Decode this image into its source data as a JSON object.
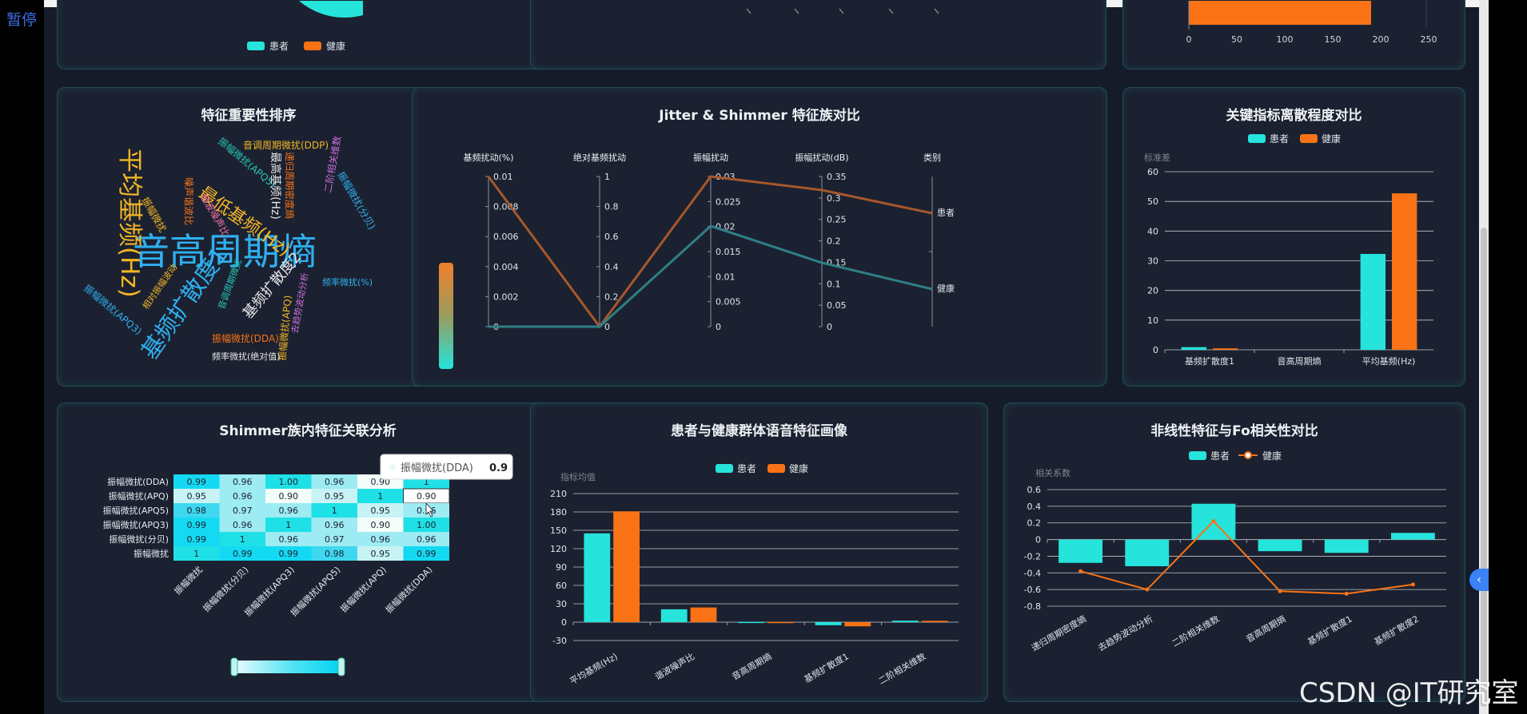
{
  "pause_label": "暂停",
  "watermark": "CSDN @IT研究室",
  "colors": {
    "patient": "#26e3dc",
    "healthy": "#f97316",
    "background": "#161b2a",
    "panel": "#1b2130"
  },
  "top_row": {
    "legend_patient": "患者",
    "legend_healthy": "健康",
    "right_axis_ticks": [
      "0",
      "50",
      "100",
      "150",
      "200",
      "250"
    ]
  },
  "wordcloud": {
    "title": "特征重要性排序",
    "words": [
      {
        "text": "音高周期熵",
        "color": "#2fb0f0"
      },
      {
        "text": "平均基频(Hz)",
        "color": "#f3b625"
      },
      {
        "text": "基频扩散度1",
        "color": "#2fb0f0"
      },
      {
        "text": "最低基频(Hz)",
        "color": "#f3b625"
      },
      {
        "text": "基频扩散度2",
        "color": "#e8e8e8"
      },
      {
        "text": "音调周期微扰(DDP)",
        "color": "#f3b625"
      },
      {
        "text": "振幅微扰(APQ5)",
        "color": "#27c7b8"
      },
      {
        "text": "最高基频(Hz)",
        "color": "#e8e8e8"
      },
      {
        "text": "递归周期密度熵",
        "color": "#f97316"
      },
      {
        "text": "振幅微扰(分贝)",
        "color": "#2fb0f0"
      },
      {
        "text": "二阶相关维数",
        "color": "#c770d6"
      },
      {
        "text": "频率微扰(%)",
        "color": "#2fb0f0"
      },
      {
        "text": "谐波噪声比",
        "color": "#ef6fa6"
      },
      {
        "text": "噪声谐波比",
        "color": "#f97316"
      },
      {
        "text": "振幅微扰",
        "color": "#f3b625"
      },
      {
        "text": "振幅微扰(APQ3)",
        "color": "#2fb0f0"
      },
      {
        "text": "相对振幅波动",
        "color": "#f3b625"
      },
      {
        "text": "音调周期微扰",
        "color": "#27c7b8"
      },
      {
        "text": "去趋势波动分析",
        "color": "#c770d6"
      },
      {
        "text": "振幅微扰(APQ)",
        "color": "#f3b625"
      },
      {
        "text": "振幅微扰(DDA)",
        "color": "#f97316"
      },
      {
        "text": "频率微扰(绝对值)",
        "color": "#e8e8e8"
      }
    ]
  },
  "jitter": {
    "title": "Jitter & Shimmer 特征族对比",
    "axes": [
      {
        "name": "基频扰动(%)",
        "ticks": [
          "0.01",
          "0.008",
          "0.006",
          "0.004",
          "0.002",
          "0"
        ]
      },
      {
        "name": "绝对基频扰动",
        "ticks": [
          "1",
          "0.8",
          "0.6",
          "0.4",
          "0.2",
          "0"
        ]
      },
      {
        "name": "振幅扰动",
        "ticks": [
          "0.03",
          "0.025",
          "0.02",
          "0.015",
          "0.01",
          "0.005",
          "0"
        ]
      },
      {
        "name": "振幅扰动(dB)",
        "ticks": [
          "0.35",
          "0.3",
          "0.25",
          "0.2",
          "0.15",
          "0.1",
          "0.05",
          "0"
        ]
      },
      {
        "name": "类别",
        "ticks": [
          "患者",
          "健康"
        ]
      }
    ]
  },
  "dispersion": {
    "title": "关键指标离散程度对比",
    "legend_patient": "患者",
    "legend_healthy": "健康",
    "y_name": "标准差",
    "chart_data": {
      "type": "bar",
      "categories": [
        "基频扩散度1",
        "音高周期熵",
        "平均基频(Hz)"
      ],
      "series": [
        {
          "name": "患者",
          "values": [
            0.9,
            0,
            32.3
          ]
        },
        {
          "name": "健康",
          "values": [
            0.5,
            0,
            52.7
          ]
        }
      ],
      "ylim": [
        0,
        60
      ],
      "yticks": [
        "0",
        "10",
        "20",
        "30",
        "40",
        "50",
        "60"
      ]
    }
  },
  "heatmap": {
    "title": "Shimmer族内特征关联分析",
    "row_labels": [
      "振幅微扰(DDA)",
      "振幅微扰(APQ)",
      "振幅微扰(APQ5)",
      "振幅微扰(APQ3)",
      "振幅微扰(分贝)",
      "振幅微扰"
    ],
    "col_labels": [
      "振幅微扰",
      "振幅微扰(分贝)",
      "振幅微扰(APQ3)",
      "振幅微扰(APQ5)",
      "振幅微扰(APQ)",
      "振幅微扰(DDA)"
    ],
    "cells": [
      [
        "0.99",
        "0.96",
        "1.00",
        "0.96",
        "0.90",
        "1"
      ],
      [
        "0.95",
        "0.96",
        "0.90",
        "0.95",
        "1",
        "0.90"
      ],
      [
        "0.98",
        "0.97",
        "0.96",
        "1",
        "0.95",
        "0.96"
      ],
      [
        "0.99",
        "0.96",
        "1",
        "0.96",
        "0.90",
        "1.00"
      ],
      [
        "0.99",
        "1",
        "0.96",
        "0.97",
        "0.96",
        "0.96"
      ],
      [
        "1",
        "0.99",
        "0.99",
        "0.98",
        "0.95",
        "0.99"
      ]
    ],
    "tooltip_label": "振幅微扰(DDA)",
    "tooltip_value": "0.9"
  },
  "profile": {
    "title": "患者与健康群体语音特征画像",
    "legend_patient": "患者",
    "legend_healthy": "健康",
    "y_name": "指标均值",
    "chart_data": {
      "type": "bar",
      "categories": [
        "平均基频(Hz)",
        "谐波噪声比",
        "音高周期熵",
        "基频扩散度1",
        "二阶相关维数"
      ],
      "series": [
        {
          "name": "患者",
          "values": [
            145,
            21,
            0.5,
            -5,
            2.4
          ]
        },
        {
          "name": "健康",
          "values": [
            181,
            24,
            0.4,
            -6.8,
            2.2
          ]
        }
      ],
      "ylim": [
        -30,
        210
      ],
      "yticks": [
        "-30",
        "0",
        "30",
        "60",
        "90",
        "120",
        "150",
        "180",
        "210"
      ]
    }
  },
  "nonlinear": {
    "title": "非线性特征与Fo相关性对比",
    "legend_patient": "患者",
    "legend_healthy": "健康",
    "y_name": "相关系数",
    "chart_data": {
      "type": "bar",
      "categories": [
        "递归周期密度熵",
        "去趋势波动分析",
        "二阶相关维数",
        "音高周期熵",
        "基频扩散度1",
        "基频扩散度2"
      ],
      "series": [
        {
          "name": "患者",
          "values": [
            -0.28,
            -0.32,
            0.43,
            -0.14,
            -0.16,
            0.08
          ]
        },
        {
          "name": "健康",
          "values": [
            -0.38,
            -0.6,
            0.22,
            -0.62,
            -0.65,
            -0.54
          ]
        }
      ],
      "ylim": [
        -0.8,
        0.6
      ],
      "yticks": [
        "-0.8",
        "-0.6",
        "-0.4",
        "-0.2",
        "0",
        "0.2",
        "0.4",
        "0.6"
      ]
    }
  }
}
